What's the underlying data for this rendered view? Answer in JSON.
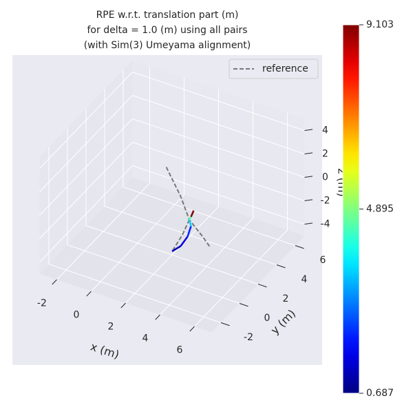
{
  "chart_data": {
    "type": "line3d",
    "title": [
      "RPE w.r.t. translation part (m)",
      "for delta = 1.0 (m) using all pairs",
      "(with Sim(3) Umeyama alignment)"
    ],
    "xlabel": "x (m)",
    "ylabel": "y (m)",
    "zlabel": "z (m)",
    "xlim": [
      -3,
      7
    ],
    "ylim": [
      -3,
      7
    ],
    "zlim": [
      -5,
      5
    ],
    "xticks": [
      -2,
      0,
      2,
      4,
      6
    ],
    "yticks": [
      -2,
      0,
      2,
      4,
      6
    ],
    "zticks": [
      -4,
      -2,
      0,
      2,
      4
    ],
    "grid": true,
    "legend": "upper right",
    "series": [
      {
        "name": "reference",
        "color": "#777777",
        "x": [
          1.5,
          2.4,
          3.0,
          3.8,
          4.3,
          null,
          3.0,
          2.6,
          2.0
        ],
        "y": [
          2.3,
          2.2,
          2.0,
          1.9,
          1.8,
          null,
          2.0,
          2.0,
          2.0
        ],
        "z": [
          2.0,
          0.0,
          -1.5,
          -2.4,
          -3.0,
          null,
          -1.5,
          -3.0,
          -4.7
        ]
      }
    ],
    "trajectory": {
      "x": [
        2.0,
        2.5,
        2.9,
        3.1,
        3.0,
        3.1,
        3.2
      ],
      "y": [
        2.0,
        2.0,
        2.0,
        2.0,
        2.0,
        2.0,
        2.1
      ],
      "z": [
        -4.7,
        -4.0,
        -3.0,
        -2.0,
        -1.5,
        -1.2,
        -0.7
      ],
      "values": [
        1.2,
        1.5,
        2.0,
        3.5,
        4.5,
        9.1,
        8.8
      ]
    },
    "colormap": "jet",
    "clim": [
      0.687,
      9.103
    ],
    "cticks": [
      0.687,
      4.895,
      9.103
    ]
  }
}
